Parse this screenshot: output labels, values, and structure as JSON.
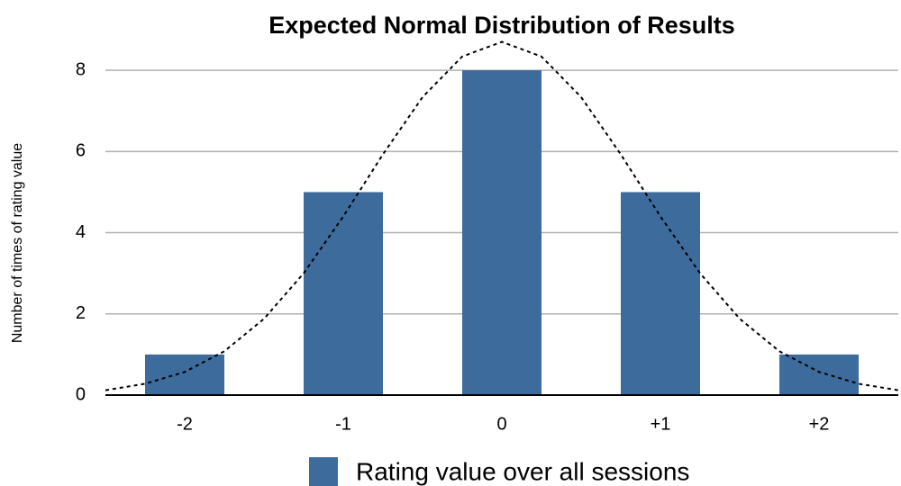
{
  "chart_data": {
    "type": "bar",
    "title": "Expected Normal Distribution of Results",
    "y_label": "Number of times of rating value",
    "categories": [
      "-2",
      "-1",
      "0",
      "+1",
      "+2"
    ],
    "series": [
      {
        "name": "Rating value over all sessions",
        "color": "#3d6b9c",
        "values": [
          1,
          5,
          8,
          5,
          1
        ]
      }
    ],
    "ylim": [
      0,
      9
    ],
    "yticks": [
      0,
      2,
      4,
      6,
      8
    ],
    "grid": true,
    "legend": "bottom",
    "curve": {
      "x": [
        -2.5,
        -2.25,
        -2,
        -1.75,
        -1.5,
        -1.25,
        -1,
        -0.75,
        -0.5,
        -0.25,
        0,
        0.25,
        0.5,
        0.75,
        1,
        1.25,
        1.5,
        1.75,
        2,
        2.25,
        2.5
      ],
      "values": [
        0.12,
        0.28,
        0.57,
        1.08,
        1.88,
        3.0,
        4.4,
        5.93,
        7.34,
        8.34,
        8.7,
        8.34,
        7.34,
        5.93,
        4.4,
        3.0,
        1.88,
        1.08,
        0.57,
        0.28,
        0.12
      ],
      "color": "#000000"
    }
  }
}
